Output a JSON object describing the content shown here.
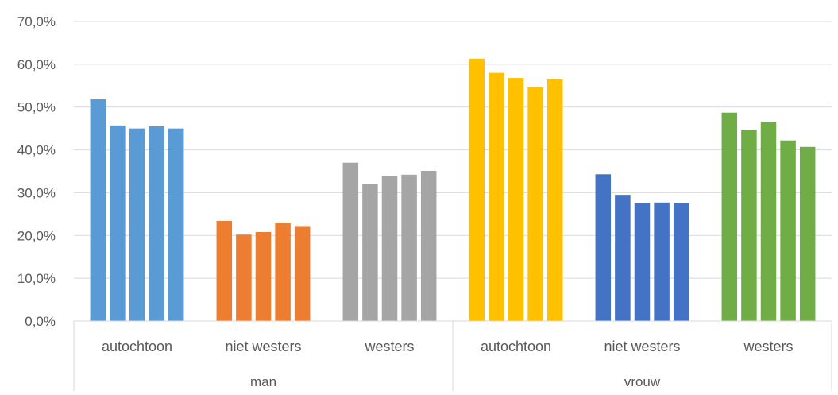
{
  "chart_data": {
    "type": "bar",
    "title": "",
    "xlabel": "",
    "ylabel": "",
    "ylim": [
      0,
      70
    ],
    "y_ticks": [
      "0,0%",
      "10,0%",
      "20,0%",
      "30,0%",
      "40,0%",
      "50,0%",
      "60,0%",
      "70,0%"
    ],
    "grid": true,
    "legend": "none",
    "groups": [
      {
        "label": "man",
        "categories": [
          {
            "label": "autochtoon",
            "color": "#5B9BD5",
            "values": [
              51.8,
              45.7,
              45.0,
              45.5,
              45.0
            ]
          },
          {
            "label": "niet westers",
            "color": "#ED7D31",
            "values": [
              23.4,
              20.2,
              20.8,
              23.0,
              22.2
            ]
          },
          {
            "label": "westers",
            "color": "#A5A5A5",
            "values": [
              37.0,
              32.0,
              33.9,
              34.2,
              35.1
            ]
          }
        ]
      },
      {
        "label": "vrouw",
        "categories": [
          {
            "label": "autochtoon",
            "color": "#FFC000",
            "values": [
              61.3,
              58.0,
              56.8,
              54.6,
              56.5
            ]
          },
          {
            "label": "niet westers",
            "color": "#4472C4",
            "values": [
              34.3,
              29.5,
              27.5,
              27.7,
              27.5
            ]
          },
          {
            "label": "westers",
            "color": "#70AD47",
            "values": [
              48.7,
              44.7,
              46.6,
              42.2,
              40.7
            ]
          }
        ]
      }
    ]
  }
}
